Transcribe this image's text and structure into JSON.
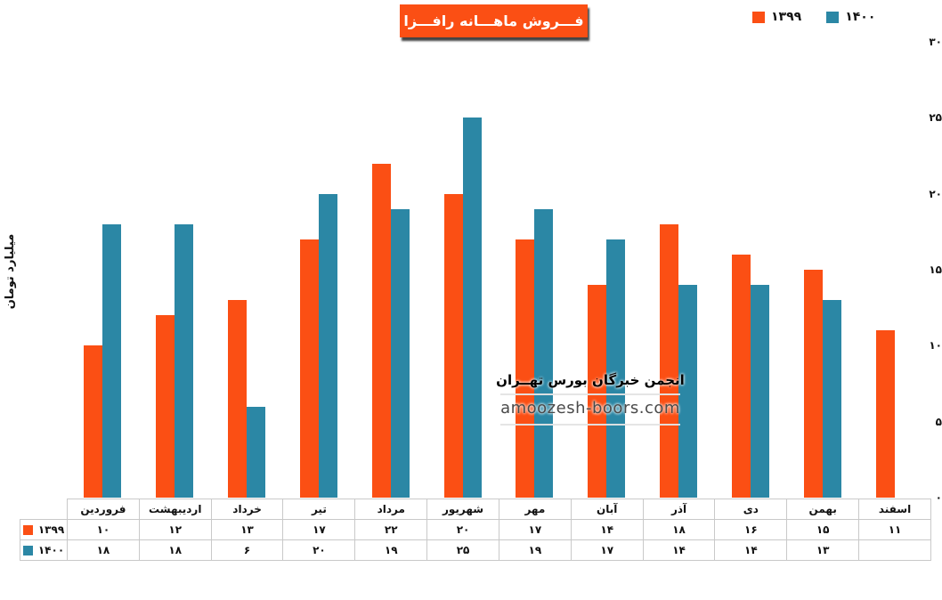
{
  "title": "فـــروش ماهـــانه رافـــزا",
  "colors": {
    "accent_orange": "#fb4f14",
    "accent_teal": "#2b87a5",
    "table_border": "#c9c9c9",
    "title_text": "#ffffff",
    "watermark_gray": "#4a4a4a"
  },
  "legend": {
    "position": "top-right"
  },
  "y_axis": {
    "title": "میلیارد تومان",
    "ticks": [
      0,
      5,
      10,
      15,
      20,
      25,
      30
    ]
  },
  "watermark": {
    "line1": "انجمن خبرگان بورس تهــران",
    "line2": "amoozesh-boors.com"
  },
  "chart_data": {
    "type": "bar",
    "title": "فـــروش ماهـــانه رافـــزا",
    "ylabel": "میلیارد تومان",
    "ylim": [
      0,
      30
    ],
    "grid": false,
    "legend_position": "top-right",
    "data_table": true,
    "categories": [
      "فروردین",
      "اردیبهشت",
      "خرداد",
      "تیر",
      "مرداد",
      "شهریور",
      "مهر",
      "آبان",
      "آذر",
      "دی",
      "بهمن",
      "اسفند"
    ],
    "series": [
      {
        "name": "۱۳۹۹",
        "color": "#fb4f14",
        "values": [
          10,
          12,
          13,
          17,
          22,
          20,
          17,
          14,
          18,
          16,
          15,
          11
        ]
      },
      {
        "name": "۱۴۰۰",
        "color": "#2b87a5",
        "values": [
          18,
          18,
          6,
          20,
          19,
          25,
          19,
          17,
          14,
          14,
          13,
          null
        ]
      }
    ]
  }
}
